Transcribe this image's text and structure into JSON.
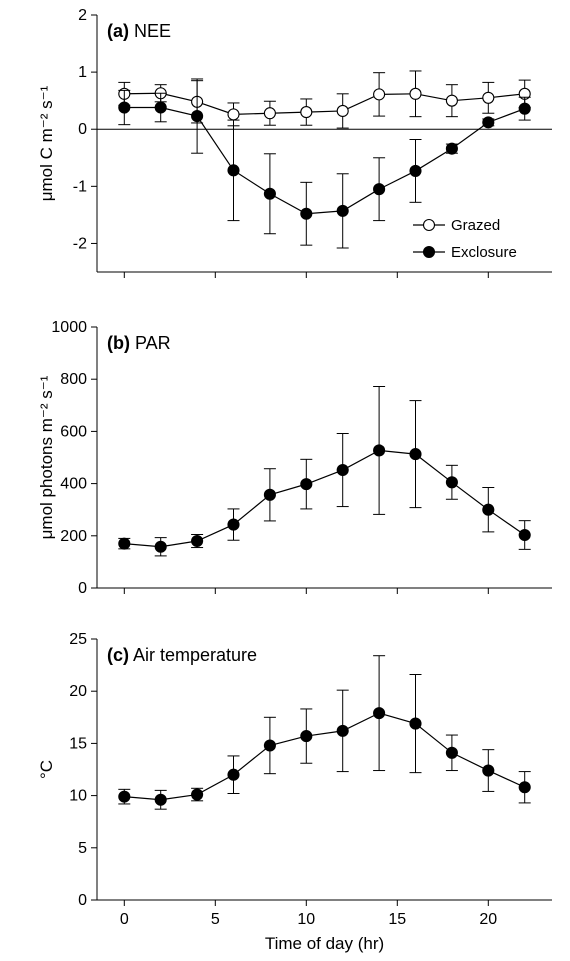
{
  "chart_data": [
    {
      "type": "line",
      "panel_letter": "(a)",
      "panel_name": "NEE",
      "ylabel": "μmol C m⁻² s⁻¹",
      "xlabel": "",
      "ylim": [
        -2.5,
        2
      ],
      "yticks": [
        -2,
        -1,
        0,
        1,
        2
      ],
      "xlim": [
        -1.5,
        23.5
      ],
      "xticks": [
        0,
        5,
        10,
        15,
        20
      ],
      "zero_line": true,
      "legend_position": "bottom-right",
      "series": [
        {
          "name": "Grazed",
          "marker": "open-circle",
          "x": [
            0,
            2,
            4,
            6,
            8,
            10,
            12,
            14,
            16,
            18,
            20,
            22
          ],
          "y": [
            0.62,
            0.63,
            0.48,
            0.26,
            0.28,
            0.3,
            0.32,
            0.61,
            0.62,
            0.5,
            0.55,
            0.62
          ],
          "err": [
            0.2,
            0.15,
            0.37,
            0.2,
            0.21,
            0.23,
            0.3,
            0.38,
            0.4,
            0.28,
            0.27,
            0.24
          ]
        },
        {
          "name": "Exclosure",
          "marker": "filled-circle",
          "x": [
            0,
            2,
            4,
            6,
            8,
            10,
            12,
            14,
            16,
            18,
            20,
            22
          ],
          "y": [
            0.38,
            0.38,
            0.23,
            -0.72,
            -1.13,
            -1.48,
            -1.43,
            -1.05,
            -0.73,
            -0.34,
            0.12,
            0.36
          ],
          "err": [
            0.3,
            0.25,
            0.65,
            0.88,
            0.7,
            0.55,
            0.65,
            0.55,
            0.55,
            0.08,
            0.06,
            0.2
          ]
        }
      ]
    },
    {
      "type": "line",
      "panel_letter": "(b)",
      "panel_name": "PAR",
      "ylabel": "μmol photons m⁻² s⁻¹",
      "xlabel": "",
      "ylim": [
        0,
        1000
      ],
      "yticks": [
        0,
        200,
        400,
        600,
        800,
        1000
      ],
      "xlim": [
        -1.5,
        23.5
      ],
      "xticks": [
        0,
        5,
        10,
        15,
        20
      ],
      "series": [
        {
          "marker": "filled-circle",
          "x": [
            0,
            2,
            4,
            6,
            8,
            10,
            12,
            14,
            16,
            18,
            20,
            22
          ],
          "y": [
            170,
            158,
            180,
            243,
            357,
            398,
            452,
            527,
            513,
            405,
            300,
            203
          ],
          "err": [
            20,
            35,
            25,
            60,
            100,
            95,
            140,
            245,
            205,
            65,
            85,
            55
          ]
        }
      ]
    },
    {
      "type": "line",
      "panel_letter": "(c)",
      "panel_name": "Air temperature",
      "ylabel": "°C",
      "xlabel": "Time of day (hr)",
      "ylim": [
        0,
        25
      ],
      "yticks": [
        0,
        5,
        10,
        15,
        20,
        25
      ],
      "xlim": [
        -1.5,
        23.5
      ],
      "xticks": [
        0,
        5,
        10,
        15,
        20
      ],
      "series": [
        {
          "marker": "filled-circle",
          "x": [
            0,
            2,
            4,
            6,
            8,
            10,
            12,
            14,
            16,
            18,
            20,
            22
          ],
          "y": [
            9.9,
            9.6,
            10.1,
            12.0,
            14.8,
            15.7,
            16.2,
            17.9,
            16.9,
            14.1,
            12.4,
            10.8
          ],
          "err": [
            0.7,
            0.9,
            0.6,
            1.8,
            2.7,
            2.6,
            3.9,
            5.5,
            4.7,
            1.7,
            2.0,
            1.5
          ]
        }
      ]
    }
  ]
}
